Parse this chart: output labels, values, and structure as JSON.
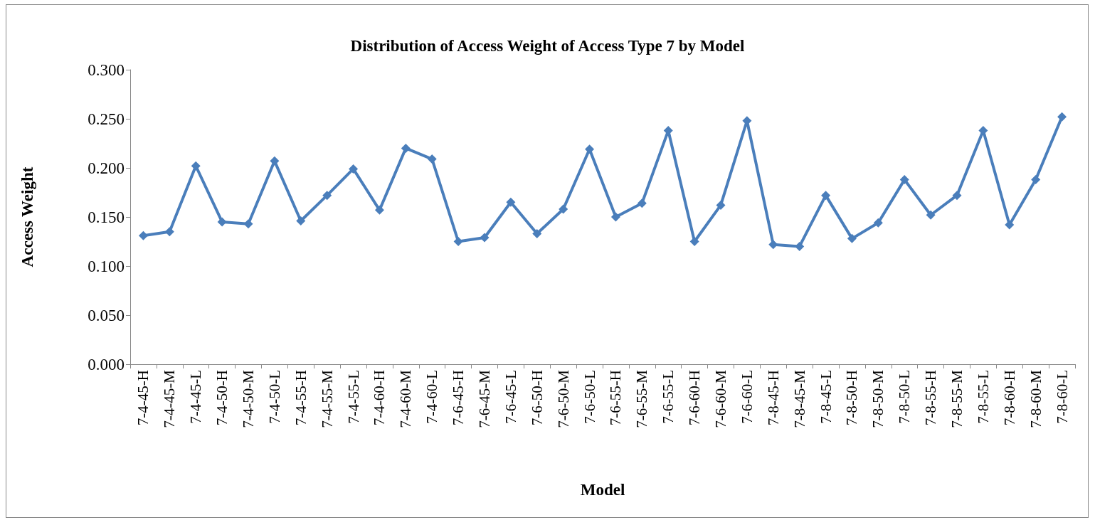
{
  "chart_data": {
    "type": "line",
    "title": "Distribution of Access Weight of Access Type 7 by Model",
    "xlabel": "Model",
    "ylabel": "Access Weight",
    "categories": [
      "7-4-45-H",
      "7-4-45-M",
      "7-4-45-L",
      "7-4-50-H",
      "7-4-50-M",
      "7-4-50-L",
      "7-4-55-H",
      "7-4-55-M",
      "7-4-55-L",
      "7-4-60-H",
      "7-4-60-M",
      "7-4-60-L",
      "7-6-45-H",
      "7-6-45-M",
      "7-6-45-L",
      "7-6-50-H",
      "7-6-50-M",
      "7-6-50-L",
      "7-6-55-H",
      "7-6-55-M",
      "7-6-55-L",
      "7-6-60-H",
      "7-6-60-M",
      "7-6-60-L",
      "7-8-45-H",
      "7-8-45-M",
      "7-8-45-L",
      "7-8-50-H",
      "7-8-50-M",
      "7-8-50-L",
      "7-8-55-H",
      "7-8-55-M",
      "7-8-55-L",
      "7-8-60-H",
      "7-8-60-M",
      "7-8-60-L"
    ],
    "series": [
      {
        "color": "#4a7ebb",
        "values": [
          0.131,
          0.135,
          0.202,
          0.145,
          0.143,
          0.207,
          0.146,
          0.172,
          0.199,
          0.157,
          0.22,
          0.209,
          0.125,
          0.129,
          0.165,
          0.133,
          0.158,
          0.219,
          0.15,
          0.164,
          0.238,
          0.125,
          0.162,
          0.248,
          0.122,
          0.12,
          0.172,
          0.128,
          0.144,
          0.188,
          0.152,
          0.172,
          0.238,
          0.142,
          0.188,
          0.252
        ]
      }
    ],
    "ylim": [
      0,
      0.3
    ],
    "yticks": [
      {
        "value": 0,
        "label": "0.000"
      },
      {
        "value": 0.05,
        "label": "0.050"
      },
      {
        "value": 0.1,
        "label": "0.100"
      },
      {
        "value": 0.15,
        "label": "0.150"
      },
      {
        "value": 0.2,
        "label": "0.200"
      },
      {
        "value": 0.25,
        "label": "0.250"
      },
      {
        "value": 0.3,
        "label": "0.300"
      }
    ],
    "grid": false,
    "marker": "diamond",
    "line_style": "solid"
  }
}
